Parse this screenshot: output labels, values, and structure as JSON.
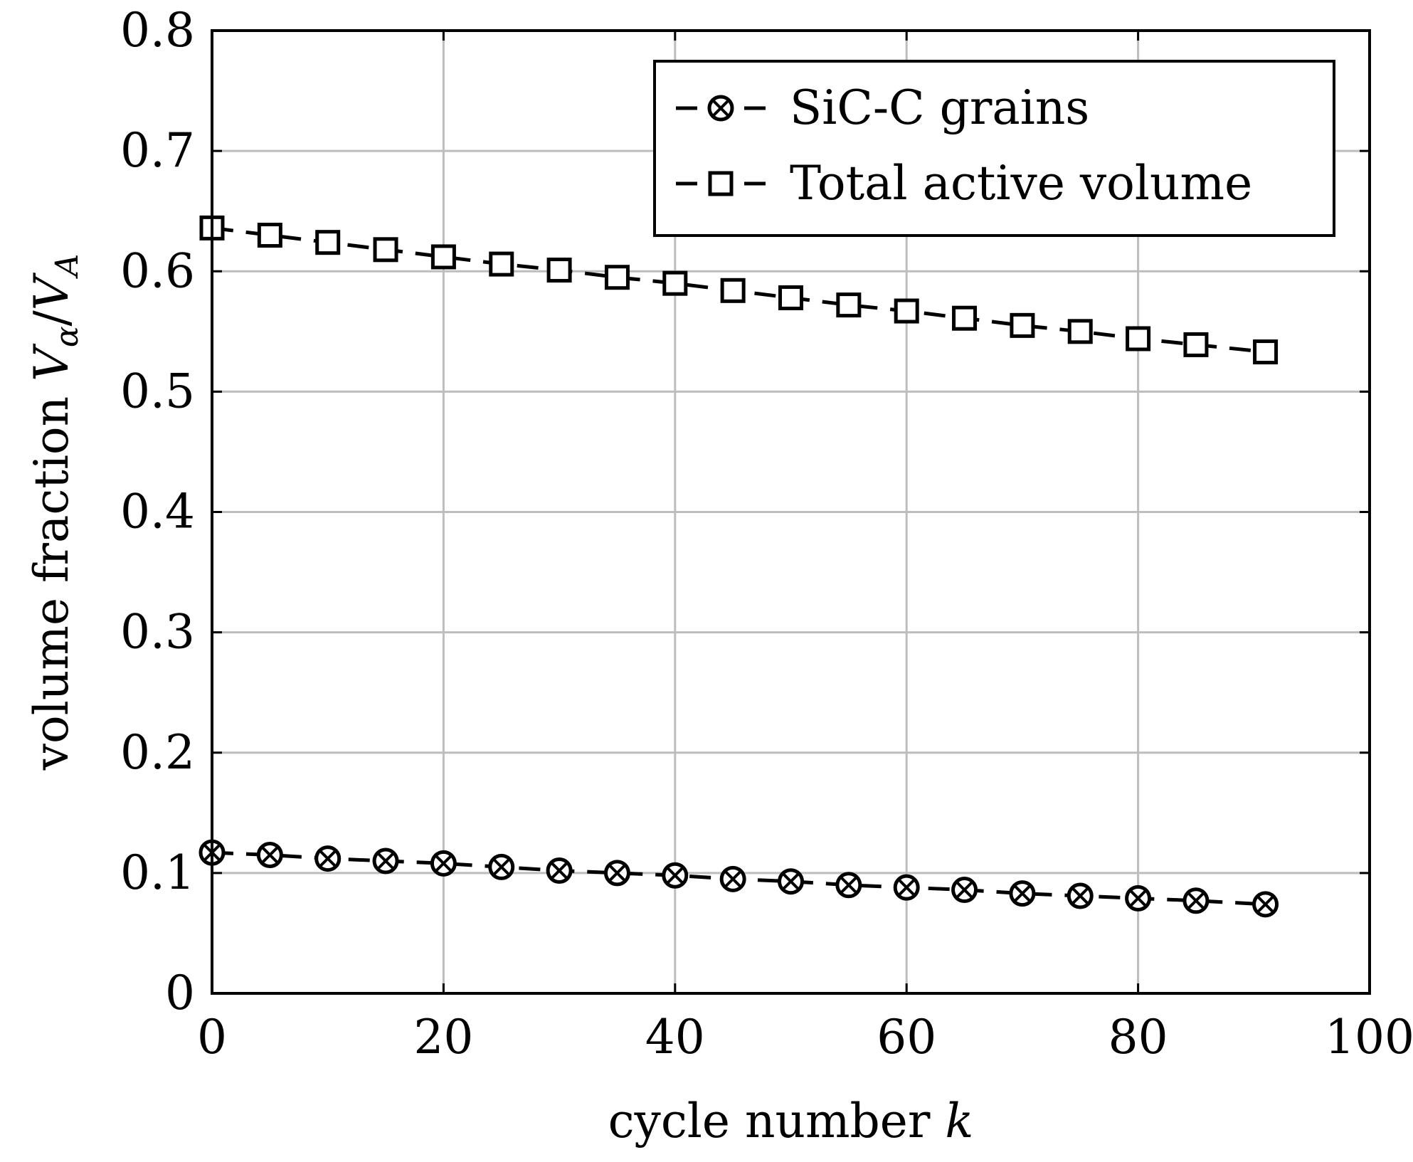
{
  "chart_data": {
    "type": "line",
    "xlabel": "cycle number k",
    "xlabel_plain": "cycle number",
    "xlabel_var": "k",
    "ylabel": "volume fraction Vα/VA",
    "ylabel_plain": "volume fraction",
    "ylabel_var": "V",
    "ylabel_sub1": "α",
    "ylabel_slash": "/",
    "ylabel_var2": "V",
    "ylabel_sub2": "A",
    "xlim": [
      0,
      100
    ],
    "ylim": [
      0,
      0.8
    ],
    "xticks": [
      0,
      20,
      40,
      60,
      80,
      100
    ],
    "xtick_labels": [
      "0",
      "20",
      "40",
      "60",
      "80",
      "100"
    ],
    "yticks": [
      0,
      0.1,
      0.2,
      0.3,
      0.4,
      0.5,
      0.6,
      0.7,
      0.8
    ],
    "ytick_labels": [
      "0",
      "0.1",
      "0.2",
      "0.3",
      "0.4",
      "0.5",
      "0.6",
      "0.7",
      "0.8"
    ],
    "grid": true,
    "legend_position": "top-right",
    "x": [
      0,
      5,
      10,
      15,
      20,
      25,
      30,
      35,
      40,
      45,
      50,
      55,
      60,
      65,
      70,
      75,
      80,
      85,
      91
    ],
    "series": [
      {
        "name": "SiC-C grains",
        "marker": "circle-cross",
        "values": [
          0.117,
          0.115,
          0.112,
          0.11,
          0.108,
          0.105,
          0.102,
          0.1,
          0.098,
          0.095,
          0.093,
          0.09,
          0.088,
          0.086,
          0.083,
          0.081,
          0.079,
          0.077,
          0.074
        ]
      },
      {
        "name": "Total active volume",
        "marker": "square",
        "values": [
          0.636,
          0.63,
          0.624,
          0.618,
          0.612,
          0.606,
          0.601,
          0.595,
          0.59,
          0.584,
          0.578,
          0.572,
          0.567,
          0.561,
          0.555,
          0.55,
          0.544,
          0.539,
          0.533
        ]
      }
    ]
  }
}
